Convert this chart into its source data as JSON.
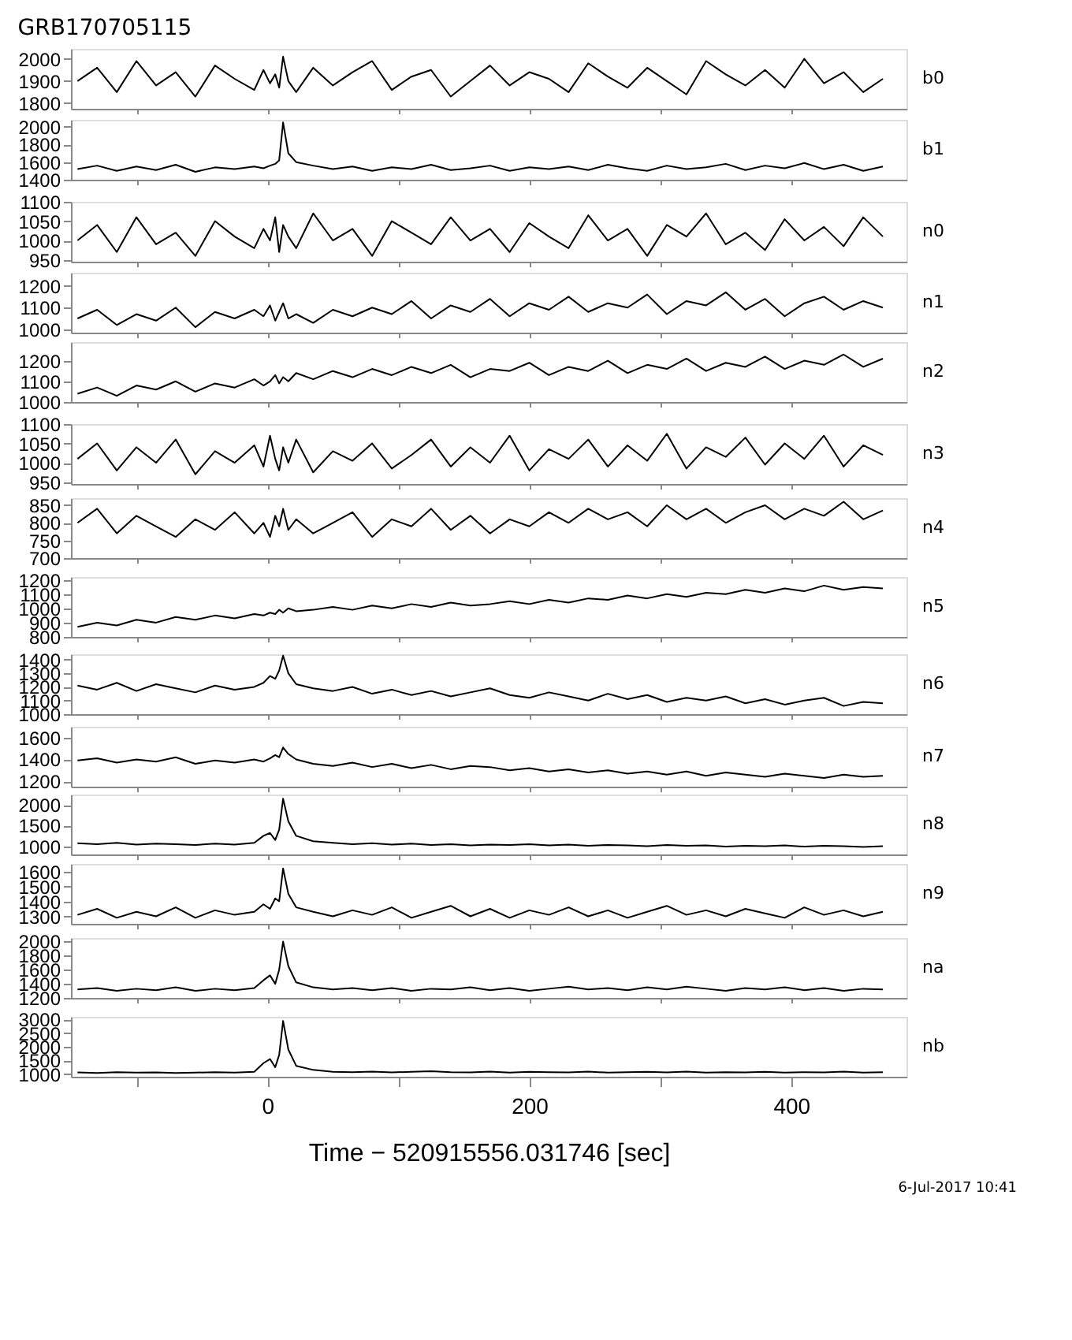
{
  "chart_data": [
    {
      "type": "line",
      "title": "GRB170705115",
      "x": [
        -145,
        -130,
        -115,
        -100,
        -85,
        -70,
        -55,
        -40,
        -25,
        -10,
        -3,
        2,
        6,
        9,
        12,
        16,
        22,
        35,
        50,
        65,
        80,
        95,
        110,
        125,
        140,
        155,
        170,
        185,
        200,
        215,
        230,
        245,
        260,
        275,
        290,
        305,
        320,
        335,
        350,
        365,
        380,
        395,
        410,
        425,
        440,
        455,
        470
      ],
      "series": [
        {
          "name": "b0",
          "color": "#000000",
          "values": [
            1900,
            1960,
            1850,
            1990,
            1880,
            1940,
            1830,
            1970,
            1910,
            1860,
            1950,
            1890,
            1930,
            1870,
            2010,
            1900,
            1850,
            1960,
            1880,
            1940,
            1990,
            1860,
            1920,
            1950,
            1830,
            1900,
            1970,
            1880,
            1940,
            1910,
            1850,
            1980,
            1920,
            1870,
            1960,
            1900,
            1840,
            1990,
            1930,
            1880,
            1950,
            1870,
            2000,
            1890,
            1940,
            1850,
            1910
          ]
        }
      ],
      "xlim": [
        -150,
        488
      ],
      "ylim": [
        1775,
        2045
      ],
      "xticks": [
        {
          "value": -100,
          "label": null
        },
        {
          "value": 0,
          "label": null
        },
        {
          "value": 100,
          "label": null
        },
        {
          "value": 200,
          "label": null
        },
        {
          "value": 300,
          "label": null
        },
        {
          "value": 400,
          "label": null
        }
      ],
      "yticks": [
        1800,
        1900,
        2000
      ],
      "tick_labels": "y"
    },
    {
      "type": "line",
      "x": [
        -145,
        -130,
        -115,
        -100,
        -85,
        -70,
        -55,
        -40,
        -25,
        -10,
        -3,
        2,
        6,
        9,
        12,
        16,
        22,
        35,
        50,
        65,
        80,
        95,
        110,
        125,
        140,
        155,
        170,
        185,
        200,
        215,
        230,
        245,
        260,
        275,
        290,
        305,
        320,
        335,
        350,
        365,
        380,
        395,
        410,
        425,
        440,
        455,
        470
      ],
      "series": [
        {
          "name": "b1",
          "color": "#000000",
          "values": [
            1520,
            1560,
            1500,
            1550,
            1510,
            1570,
            1490,
            1540,
            1520,
            1550,
            1530,
            1560,
            1580,
            1620,
            2050,
            1700,
            1600,
            1560,
            1520,
            1550,
            1500,
            1540,
            1520,
            1570,
            1510,
            1530,
            1560,
            1500,
            1540,
            1520,
            1550,
            1510,
            1570,
            1530,
            1500,
            1560,
            1520,
            1540,
            1580,
            1510,
            1560,
            1530,
            1590,
            1520,
            1570,
            1500,
            1550
          ]
        }
      ],
      "xlim": [
        -150,
        488
      ],
      "ylim": [
        1400,
        2080
      ],
      "xticks": [
        {
          "value": -100,
          "label": null
        },
        {
          "value": 0,
          "label": null
        },
        {
          "value": 100,
          "label": null
        },
        {
          "value": 200,
          "label": null
        },
        {
          "value": 300,
          "label": null
        },
        {
          "value": 400,
          "label": null
        }
      ],
      "yticks": [
        1400,
        1600,
        1800,
        2000
      ],
      "tick_labels": "y"
    },
    {
      "type": "line",
      "x": [
        -145,
        -130,
        -115,
        -100,
        -85,
        -70,
        -55,
        -40,
        -25,
        -10,
        -3,
        2,
        6,
        9,
        12,
        16,
        22,
        35,
        50,
        65,
        80,
        95,
        110,
        125,
        140,
        155,
        170,
        185,
        200,
        215,
        230,
        245,
        260,
        275,
        290,
        305,
        320,
        335,
        350,
        365,
        380,
        395,
        410,
        425,
        440,
        455,
        470
      ],
      "series": [
        {
          "name": "n0",
          "color": "#000000",
          "values": [
            1000,
            1040,
            970,
            1060,
            990,
            1020,
            960,
            1050,
            1010,
            980,
            1030,
            1000,
            1060,
            970,
            1040,
            1010,
            980,
            1070,
            1000,
            1030,
            960,
            1050,
            1020,
            990,
            1060,
            1000,
            1030,
            970,
            1045,
            1010,
            980,
            1065,
            1000,
            1030,
            960,
            1040,
            1010,
            1070,
            990,
            1020,
            975,
            1055,
            1000,
            1035,
            985,
            1060,
            1010
          ]
        }
      ],
      "xlim": [
        -150,
        488
      ],
      "ylim": [
        945,
        1100
      ],
      "xticks": [
        {
          "value": -100,
          "label": null
        },
        {
          "value": 0,
          "label": null
        },
        {
          "value": 100,
          "label": null
        },
        {
          "value": 200,
          "label": null
        },
        {
          "value": 300,
          "label": null
        },
        {
          "value": 400,
          "label": null
        }
      ],
      "yticks": [
        950,
        1000,
        1050,
        1100
      ],
      "tick_labels": "y"
    },
    {
      "type": "line",
      "x": [
        -145,
        -130,
        -115,
        -100,
        -85,
        -70,
        -55,
        -40,
        -25,
        -10,
        -3,
        2,
        6,
        9,
        12,
        16,
        22,
        35,
        50,
        65,
        80,
        95,
        110,
        125,
        140,
        155,
        170,
        185,
        200,
        215,
        230,
        245,
        260,
        275,
        290,
        305,
        320,
        335,
        350,
        365,
        380,
        395,
        410,
        425,
        440,
        455,
        470
      ],
      "series": [
        {
          "name": "n1",
          "color": "#000000",
          "values": [
            1050,
            1090,
            1020,
            1070,
            1040,
            1100,
            1010,
            1080,
            1050,
            1090,
            1060,
            1110,
            1040,
            1080,
            1120,
            1050,
            1070,
            1030,
            1090,
            1060,
            1100,
            1070,
            1130,
            1050,
            1110,
            1080,
            1140,
            1060,
            1120,
            1090,
            1150,
            1080,
            1120,
            1100,
            1160,
            1070,
            1130,
            1110,
            1170,
            1090,
            1140,
            1060,
            1120,
            1150,
            1090,
            1130,
            1100
          ]
        }
      ],
      "xlim": [
        -150,
        488
      ],
      "ylim": [
        985,
        1260
      ],
      "xticks": [
        {
          "value": -100,
          "label": null
        },
        {
          "value": 0,
          "label": null
        },
        {
          "value": 100,
          "label": null
        },
        {
          "value": 200,
          "label": null
        },
        {
          "value": 300,
          "label": null
        },
        {
          "value": 400,
          "label": null
        }
      ],
      "yticks": [
        1000,
        1100,
        1200
      ],
      "tick_labels": "y"
    },
    {
      "type": "line",
      "x": [
        -145,
        -130,
        -115,
        -100,
        -85,
        -70,
        -55,
        -40,
        -25,
        -10,
        -3,
        2,
        6,
        9,
        12,
        16,
        22,
        35,
        50,
        65,
        80,
        95,
        110,
        125,
        140,
        155,
        170,
        185,
        200,
        215,
        230,
        245,
        260,
        275,
        290,
        305,
        320,
        335,
        350,
        365,
        380,
        395,
        410,
        425,
        440,
        455,
        470
      ],
      "series": [
        {
          "name": "n2",
          "color": "#000000",
          "values": [
            1040,
            1070,
            1030,
            1080,
            1060,
            1100,
            1050,
            1090,
            1070,
            1110,
            1080,
            1100,
            1130,
            1090,
            1120,
            1100,
            1140,
            1110,
            1150,
            1120,
            1160,
            1130,
            1170,
            1140,
            1180,
            1120,
            1160,
            1150,
            1190,
            1130,
            1170,
            1150,
            1200,
            1140,
            1180,
            1160,
            1210,
            1150,
            1190,
            1170,
            1220,
            1160,
            1200,
            1180,
            1230,
            1170,
            1210
          ]
        }
      ],
      "xlim": [
        -150,
        488
      ],
      "ylim": [
        1000,
        1290
      ],
      "xticks": [
        {
          "value": -100,
          "label": null
        },
        {
          "value": 0,
          "label": null
        },
        {
          "value": 100,
          "label": null
        },
        {
          "value": 200,
          "label": null
        },
        {
          "value": 300,
          "label": null
        },
        {
          "value": 400,
          "label": null
        }
      ],
      "yticks": [
        1000,
        1100,
        1200
      ],
      "tick_labels": "y"
    },
    {
      "type": "line",
      "x": [
        -145,
        -130,
        -115,
        -100,
        -85,
        -70,
        -55,
        -40,
        -25,
        -10,
        -3,
        2,
        6,
        9,
        12,
        16,
        22,
        35,
        50,
        65,
        80,
        95,
        110,
        125,
        140,
        155,
        170,
        185,
        200,
        215,
        230,
        245,
        260,
        275,
        290,
        305,
        320,
        335,
        350,
        365,
        380,
        395,
        410,
        425,
        440,
        455,
        470
      ],
      "series": [
        {
          "name": "n3",
          "color": "#000000",
          "values": [
            1010,
            1050,
            980,
            1040,
            1000,
            1060,
            970,
            1030,
            1000,
            1045,
            990,
            1070,
            1010,
            980,
            1040,
            1000,
            1060,
            975,
            1030,
            1005,
            1050,
            985,
            1020,
            1060,
            990,
            1040,
            1000,
            1070,
            980,
            1035,
            1010,
            1060,
            990,
            1045,
            1005,
            1075,
            985,
            1040,
            1015,
            1065,
            995,
            1050,
            1010,
            1070,
            990,
            1045,
            1020
          ]
        }
      ],
      "xlim": [
        -150,
        488
      ],
      "ylim": [
        945,
        1100
      ],
      "xticks": [
        {
          "value": -100,
          "label": null
        },
        {
          "value": 0,
          "label": null
        },
        {
          "value": 100,
          "label": null
        },
        {
          "value": 200,
          "label": null
        },
        {
          "value": 300,
          "label": null
        },
        {
          "value": 400,
          "label": null
        }
      ],
      "yticks": [
        950,
        1000,
        1050,
        1100
      ],
      "tick_labels": "y"
    },
    {
      "type": "line",
      "x": [
        -145,
        -130,
        -115,
        -100,
        -85,
        -70,
        -55,
        -40,
        -25,
        -10,
        -3,
        2,
        6,
        9,
        12,
        16,
        22,
        35,
        50,
        65,
        80,
        95,
        110,
        125,
        140,
        155,
        170,
        185,
        200,
        215,
        230,
        245,
        260,
        275,
        290,
        305,
        320,
        335,
        350,
        365,
        380,
        395,
        410,
        425,
        440,
        455,
        470
      ],
      "series": [
        {
          "name": "n4",
          "color": "#000000",
          "values": [
            800,
            840,
            770,
            820,
            790,
            760,
            810,
            780,
            830,
            770,
            800,
            760,
            820,
            790,
            840,
            780,
            810,
            770,
            800,
            830,
            760,
            810,
            790,
            840,
            780,
            820,
            770,
            810,
            790,
            830,
            800,
            840,
            810,
            830,
            790,
            850,
            810,
            840,
            800,
            830,
            850,
            810,
            840,
            820,
            860,
            810,
            835
          ]
        }
      ],
      "xlim": [
        -150,
        488
      ],
      "ylim": [
        700,
        870
      ],
      "xticks": [
        {
          "value": -100,
          "label": null
        },
        {
          "value": 0,
          "label": null
        },
        {
          "value": 100,
          "label": null
        },
        {
          "value": 200,
          "label": null
        },
        {
          "value": 300,
          "label": null
        },
        {
          "value": 400,
          "label": null
        }
      ],
      "yticks": [
        700,
        750,
        800,
        850
      ],
      "tick_labels": "y"
    },
    {
      "type": "line",
      "x": [
        -145,
        -130,
        -115,
        -100,
        -85,
        -70,
        -55,
        -40,
        -25,
        -10,
        -3,
        2,
        6,
        9,
        12,
        16,
        22,
        35,
        50,
        65,
        80,
        95,
        110,
        125,
        140,
        155,
        170,
        185,
        200,
        215,
        230,
        245,
        260,
        275,
        290,
        305,
        320,
        335,
        350,
        365,
        380,
        395,
        410,
        425,
        440,
        455,
        470
      ],
      "series": [
        {
          "name": "n5",
          "color": "#000000",
          "values": [
            870,
            900,
            880,
            920,
            900,
            940,
            920,
            950,
            930,
            960,
            950,
            970,
            960,
            990,
            970,
            1000,
            980,
            990,
            1010,
            990,
            1020,
            1000,
            1030,
            1010,
            1040,
            1020,
            1030,
            1050,
            1030,
            1060,
            1040,
            1070,
            1060,
            1090,
            1070,
            1100,
            1080,
            1110,
            1100,
            1130,
            1110,
            1140,
            1120,
            1160,
            1130,
            1150,
            1140
          ]
        }
      ],
      "xlim": [
        -150,
        488
      ],
      "ylim": [
        800,
        1220
      ],
      "xticks": [
        {
          "value": -100,
          "label": null
        },
        {
          "value": 0,
          "label": null
        },
        {
          "value": 100,
          "label": null
        },
        {
          "value": 200,
          "label": null
        },
        {
          "value": 300,
          "label": null
        },
        {
          "value": 400,
          "label": null
        }
      ],
      "yticks": [
        800,
        900,
        1000,
        1100,
        1200
      ],
      "tick_labels": "y"
    },
    {
      "type": "line",
      "x": [
        -145,
        -130,
        -115,
        -100,
        -85,
        -70,
        -55,
        -40,
        -25,
        -10,
        -3,
        2,
        6,
        9,
        12,
        16,
        22,
        35,
        50,
        65,
        80,
        95,
        110,
        125,
        140,
        155,
        170,
        185,
        200,
        215,
        230,
        245,
        260,
        275,
        290,
        305,
        320,
        335,
        350,
        365,
        380,
        395,
        410,
        425,
        440,
        455,
        470
      ],
      "series": [
        {
          "name": "n6",
          "color": "#000000",
          "values": [
            1210,
            1180,
            1230,
            1170,
            1220,
            1190,
            1160,
            1210,
            1180,
            1200,
            1230,
            1280,
            1260,
            1320,
            1430,
            1300,
            1220,
            1190,
            1170,
            1200,
            1150,
            1180,
            1140,
            1170,
            1130,
            1160,
            1190,
            1140,
            1120,
            1160,
            1130,
            1100,
            1150,
            1110,
            1140,
            1090,
            1120,
            1100,
            1130,
            1080,
            1110,
            1070,
            1100,
            1120,
            1060,
            1090,
            1080
          ]
        }
      ],
      "xlim": [
        -150,
        488
      ],
      "ylim": [
        1000,
        1440
      ],
      "xticks": [
        {
          "value": -100,
          "label": null
        },
        {
          "value": 0,
          "label": null
        },
        {
          "value": 100,
          "label": null
        },
        {
          "value": 200,
          "label": null
        },
        {
          "value": 300,
          "label": null
        },
        {
          "value": 400,
          "label": null
        }
      ],
      "yticks": [
        1000,
        1100,
        1200,
        1300,
        1400
      ],
      "tick_labels": "y"
    },
    {
      "type": "line",
      "x": [
        -145,
        -130,
        -115,
        -100,
        -85,
        -70,
        -55,
        -40,
        -25,
        -10,
        -3,
        2,
        6,
        9,
        12,
        16,
        22,
        35,
        50,
        65,
        80,
        95,
        110,
        125,
        140,
        155,
        170,
        185,
        200,
        215,
        230,
        245,
        260,
        275,
        290,
        305,
        320,
        335,
        350,
        365,
        380,
        395,
        410,
        425,
        440,
        455,
        470
      ],
      "series": [
        {
          "name": "n7",
          "color": "#000000",
          "values": [
            1390,
            1410,
            1370,
            1400,
            1380,
            1420,
            1360,
            1390,
            1370,
            1400,
            1380,
            1410,
            1440,
            1420,
            1510,
            1450,
            1400,
            1360,
            1340,
            1370,
            1330,
            1360,
            1320,
            1350,
            1310,
            1340,
            1330,
            1300,
            1320,
            1290,
            1310,
            1280,
            1300,
            1270,
            1290,
            1260,
            1290,
            1250,
            1280,
            1260,
            1240,
            1270,
            1250,
            1230,
            1260,
            1240,
            1250
          ]
        }
      ],
      "xlim": [
        -150,
        488
      ],
      "ylim": [
        1150,
        1700
      ],
      "xticks": [
        {
          "value": -100,
          "label": null
        },
        {
          "value": 0,
          "label": null
        },
        {
          "value": 100,
          "label": null
        },
        {
          "value": 200,
          "label": null
        },
        {
          "value": 300,
          "label": null
        },
        {
          "value": 400,
          "label": null
        }
      ],
      "yticks": [
        1200,
        1400,
        1600
      ],
      "tick_labels": "y"
    },
    {
      "type": "line",
      "x": [
        -145,
        -130,
        -115,
        -100,
        -85,
        -70,
        -55,
        -40,
        -25,
        -10,
        -3,
        2,
        6,
        9,
        12,
        16,
        22,
        35,
        50,
        65,
        80,
        95,
        110,
        125,
        140,
        155,
        170,
        185,
        200,
        215,
        230,
        245,
        260,
        275,
        290,
        305,
        320,
        335,
        350,
        365,
        380,
        395,
        410,
        425,
        440,
        455,
        470
      ],
      "series": [
        {
          "name": "n8",
          "color": "#000000",
          "values": [
            1070,
            1050,
            1080,
            1040,
            1060,
            1050,
            1030,
            1060,
            1040,
            1080,
            1250,
            1320,
            1150,
            1400,
            2150,
            1600,
            1250,
            1120,
            1080,
            1050,
            1070,
            1040,
            1060,
            1030,
            1050,
            1020,
            1040,
            1030,
            1050,
            1020,
            1040,
            1010,
            1030,
            1020,
            1000,
            1030,
            1010,
            1020,
            990,
            1010,
            1000,
            1020,
            990,
            1010,
            1000,
            980,
            1000
          ]
        }
      ],
      "xlim": [
        -150,
        488
      ],
      "ylim": [
        800,
        2250
      ],
      "xticks": [
        {
          "value": -100,
          "label": null
        },
        {
          "value": 0,
          "label": null
        },
        {
          "value": 100,
          "label": null
        },
        {
          "value": 200,
          "label": null
        },
        {
          "value": 300,
          "label": null
        },
        {
          "value": 400,
          "label": null
        }
      ],
      "yticks": [
        1000,
        1500,
        2000
      ],
      "tick_labels": "y"
    },
    {
      "type": "line",
      "x": [
        -145,
        -130,
        -115,
        -100,
        -85,
        -70,
        -55,
        -40,
        -25,
        -10,
        -3,
        2,
        6,
        9,
        12,
        16,
        22,
        35,
        50,
        65,
        80,
        95,
        110,
        125,
        140,
        155,
        170,
        185,
        200,
        215,
        230,
        245,
        260,
        275,
        290,
        305,
        320,
        335,
        350,
        365,
        380,
        395,
        410,
        425,
        440,
        455,
        470
      ],
      "series": [
        {
          "name": "n9",
          "color": "#000000",
          "values": [
            1310,
            1350,
            1290,
            1330,
            1300,
            1360,
            1290,
            1340,
            1310,
            1330,
            1380,
            1350,
            1420,
            1400,
            1620,
            1450,
            1360,
            1330,
            1300,
            1340,
            1310,
            1360,
            1290,
            1330,
            1370,
            1300,
            1350,
            1290,
            1340,
            1310,
            1360,
            1300,
            1340,
            1290,
            1330,
            1370,
            1310,
            1340,
            1300,
            1350,
            1320,
            1290,
            1360,
            1310,
            1340,
            1300,
            1330
          ]
        }
      ],
      "xlim": [
        -150,
        488
      ],
      "ylim": [
        1250,
        1650
      ],
      "xticks": [
        {
          "value": -100,
          "label": null
        },
        {
          "value": 0,
          "label": null
        },
        {
          "value": 100,
          "label": null
        },
        {
          "value": 200,
          "label": null
        },
        {
          "value": 300,
          "label": null
        },
        {
          "value": 400,
          "label": null
        }
      ],
      "yticks": [
        1300,
        1400,
        1500,
        1600
      ],
      "tick_labels": "y"
    },
    {
      "type": "line",
      "x": [
        -145,
        -130,
        -115,
        -100,
        -85,
        -70,
        -55,
        -40,
        -25,
        -10,
        -3,
        2,
        6,
        9,
        12,
        16,
        22,
        35,
        50,
        65,
        80,
        95,
        110,
        125,
        140,
        155,
        170,
        185,
        200,
        215,
        230,
        245,
        260,
        275,
        290,
        305,
        320,
        335,
        350,
        365,
        380,
        395,
        410,
        425,
        440,
        455,
        470
      ],
      "series": [
        {
          "name": "na",
          "color": "#000000",
          "values": [
            1320,
            1340,
            1300,
            1330,
            1310,
            1350,
            1300,
            1330,
            1310,
            1340,
            1450,
            1520,
            1400,
            1600,
            2000,
            1650,
            1420,
            1350,
            1320,
            1340,
            1310,
            1340,
            1300,
            1330,
            1320,
            1350,
            1310,
            1340,
            1300,
            1330,
            1360,
            1320,
            1340,
            1310,
            1350,
            1320,
            1360,
            1330,
            1300,
            1340,
            1320,
            1350,
            1310,
            1340,
            1300,
            1330,
            1320
          ]
        }
      ],
      "xlim": [
        -150,
        488
      ],
      "ylim": [
        1200,
        2050
      ],
      "xticks": [
        {
          "value": -100,
          "label": null
        },
        {
          "value": 0,
          "label": null
        },
        {
          "value": 100,
          "label": null
        },
        {
          "value": 200,
          "label": null
        },
        {
          "value": 300,
          "label": null
        },
        {
          "value": 400,
          "label": null
        }
      ],
      "yticks": [
        1200,
        1400,
        1600,
        1800,
        2000
      ],
      "tick_labels": "y"
    },
    {
      "type": "line",
      "xlabel": "Time − 520915556.031746 [sec]",
      "annotations": [
        "6-Jul-2017 10:41"
      ],
      "x": [
        -145,
        -130,
        -115,
        -100,
        -85,
        -70,
        -55,
        -40,
        -25,
        -10,
        -3,
        2,
        6,
        9,
        12,
        16,
        22,
        35,
        50,
        65,
        80,
        95,
        110,
        125,
        140,
        155,
        170,
        185,
        200,
        215,
        230,
        245,
        260,
        275,
        290,
        305,
        320,
        335,
        350,
        365,
        380,
        395,
        410,
        425,
        440,
        455,
        470
      ],
      "series": [
        {
          "name": "nb",
          "color": "#000000",
          "values": [
            1060,
            1040,
            1070,
            1050,
            1060,
            1040,
            1050,
            1070,
            1050,
            1080,
            1400,
            1550,
            1250,
            1700,
            2950,
            1900,
            1300,
            1150,
            1080,
            1070,
            1090,
            1060,
            1080,
            1100,
            1070,
            1060,
            1090,
            1050,
            1080,
            1070,
            1060,
            1090,
            1050,
            1070,
            1080,
            1060,
            1090,
            1050,
            1070,
            1060,
            1080,
            1050,
            1070,
            1060,
            1090,
            1050,
            1070
          ]
        }
      ],
      "xlim": [
        -150,
        488
      ],
      "ylim": [
        900,
        3100
      ],
      "xticks": [
        {
          "value": -100,
          "label": null
        },
        0,
        {
          "value": 100,
          "label": null
        },
        200,
        {
          "value": 300,
          "label": null
        },
        400
      ],
      "yticks": [
        1000,
        1500,
        2000,
        2500,
        3000
      ]
    }
  ]
}
